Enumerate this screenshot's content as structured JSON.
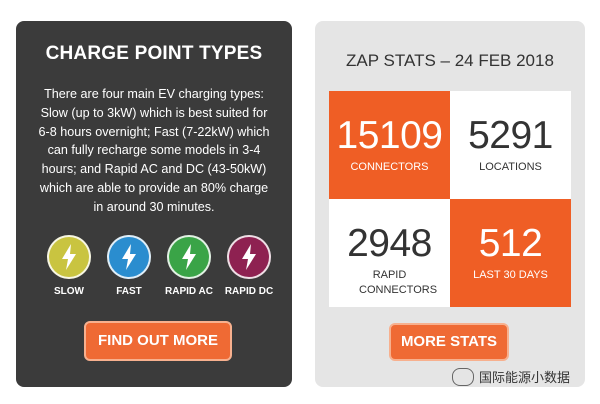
{
  "charge_types": {
    "title": "CHARGE POINT TYPES",
    "description": "There are four main EV charging types: Slow (up to 3kW) which is best suited for 6-8 hours overnight; Fast (7-22kW) which can fully recharge some models in 3-4 hours; and Rapid AC and DC (43-50kW) which are able to provide an 80% charge in around 30 minutes.",
    "types": [
      {
        "label": "SLOW",
        "color": "#c9c440",
        "icon": "lightning-bolt-icon"
      },
      {
        "label": "FAST",
        "color": "#2a8dcf",
        "icon": "lightning-bolt-icon"
      },
      {
        "label": "RAPID AC",
        "color": "#3aa447",
        "icon": "lightning-bolt-icon"
      },
      {
        "label": "RAPID DC",
        "color": "#8e2151",
        "icon": "lightning-bolt-icon"
      }
    ],
    "button_label": "FIND OUT MORE"
  },
  "zap_stats": {
    "title": "ZAP STATS – 24 FEB 2018",
    "stats": [
      {
        "value": "15109",
        "label": "CONNECTORS"
      },
      {
        "value": "5291",
        "label": "LOCATIONS"
      },
      {
        "value": "2948",
        "label": "RAPID CONNECTORS"
      },
      {
        "value": "512",
        "label": "LAST 30 DAYS"
      }
    ],
    "button_label": "MORE STATS"
  },
  "watermark": {
    "text": "国际能源小数据",
    "icon": "wechat-icon"
  },
  "colors": {
    "accent": "#ef6a34",
    "stat_orange": "#ef5e25",
    "dark_card": "#3b3b3b",
    "light_card": "#e5e5e5"
  }
}
